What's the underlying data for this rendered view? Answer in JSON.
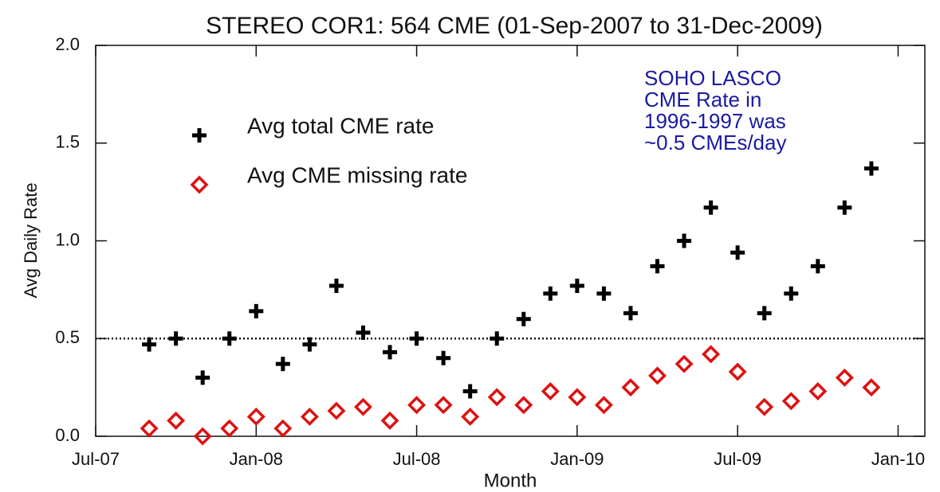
{
  "chart_data": {
    "type": "scatter",
    "title": "STEREO COR1: 564 CME (01-Sep-2007 to 31-Dec-2009)",
    "xlabel": "Month",
    "ylabel": "Avg Daily Rate",
    "x": [
      "2007-09",
      "2007-10",
      "2007-11",
      "2007-12",
      "2008-01",
      "2008-02",
      "2008-03",
      "2008-04",
      "2008-05",
      "2008-06",
      "2008-07",
      "2008-08",
      "2008-09",
      "2008-10",
      "2008-11",
      "2008-12",
      "2009-01",
      "2009-02",
      "2009-03",
      "2009-04",
      "2009-05",
      "2009-06",
      "2009-07",
      "2009-08",
      "2009-09",
      "2009-10",
      "2009-11",
      "2009-12"
    ],
    "series": [
      {
        "name": "Avg total CME rate",
        "color": "#000000",
        "marker": "plus",
        "values": [
          0.47,
          0.5,
          0.3,
          0.5,
          0.64,
          0.37,
          0.47,
          0.77,
          0.53,
          0.43,
          0.5,
          0.4,
          0.23,
          0.5,
          0.6,
          0.73,
          0.77,
          0.73,
          0.63,
          0.87,
          1.0,
          1.17,
          0.94,
          0.63,
          0.73,
          0.87,
          1.17,
          1.37
        ]
      },
      {
        "name": "Avg CME missing rate",
        "color": "#dd1111",
        "marker": "diamond",
        "values": [
          0.04,
          0.08,
          0.0,
          0.04,
          0.1,
          0.04,
          0.1,
          0.13,
          0.15,
          0.08,
          0.16,
          0.16,
          0.1,
          0.2,
          0.16,
          0.23,
          0.2,
          0.16,
          0.25,
          0.31,
          0.37,
          0.42,
          0.33,
          0.15,
          0.18,
          0.23,
          0.3,
          0.25
        ]
      }
    ],
    "xlim": [
      "2007-07",
      "2010-02"
    ],
    "xticks": [
      {
        "value": "2007-07",
        "label": "Jul-07"
      },
      {
        "value": "2008-01",
        "label": "Jan-08"
      },
      {
        "value": "2008-07",
        "label": "Jul-08"
      },
      {
        "value": "2009-01",
        "label": "Jan-09"
      },
      {
        "value": "2009-07",
        "label": "Jul-09"
      },
      {
        "value": "2010-01",
        "label": "Jan-10"
      }
    ],
    "ylim": [
      0,
      2
    ],
    "yticks": [
      {
        "value": 0,
        "label": "0.0"
      },
      {
        "value": 0.5,
        "label": "0.5"
      },
      {
        "value": 1,
        "label": "1.0"
      },
      {
        "value": 1.5,
        "label": "1.5"
      },
      {
        "value": 2,
        "label": "2.0"
      }
    ],
    "hline": 0.5,
    "annotation": {
      "lines": [
        "SOHO LASCO",
        "CME Rate in",
        "1996-1997 was",
        "~0.5 CMEs/day"
      ],
      "color": "#1a1aa0"
    },
    "legend": "upper left"
  }
}
